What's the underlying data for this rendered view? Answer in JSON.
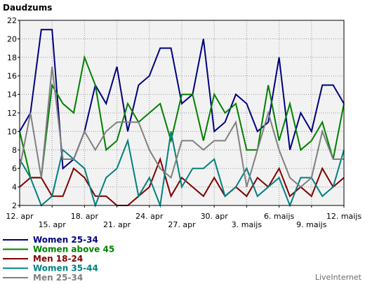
{
  "chart_data": {
    "type": "line",
    "title": "Daudzums",
    "xlabel": "",
    "ylabel": "",
    "ylim": [
      2,
      22
    ],
    "yticks": [
      2,
      4,
      6,
      8,
      10,
      12,
      14,
      16,
      18,
      20,
      22
    ],
    "grid": true,
    "legend_position": "bottom-left",
    "x_tick_labels": [
      {
        "index": 0,
        "label": "12. apr"
      },
      {
        "index": 3,
        "label": "15. apr"
      },
      {
        "index": 6,
        "label": "18. apr"
      },
      {
        "index": 9,
        "label": "21. apr"
      },
      {
        "index": 12,
        "label": "24. apr"
      },
      {
        "index": 15,
        "label": "27. apr"
      },
      {
        "index": 18,
        "label": "30. apr"
      },
      {
        "index": 21,
        "label": "3. maijs"
      },
      {
        "index": 24,
        "label": "6. maijs"
      },
      {
        "index": 27,
        "label": "9. maijs"
      },
      {
        "index": 30,
        "label": "12. maijs"
      }
    ],
    "series": [
      {
        "name": "Women 25-34",
        "color": "#000080",
        "values": [
          10,
          12,
          21,
          21,
          6,
          7,
          10,
          15,
          13,
          17,
          10,
          15,
          16,
          19,
          19,
          13,
          14,
          20,
          10,
          11,
          14,
          13,
          10,
          11,
          18,
          8,
          12,
          10,
          15,
          15,
          13
        ]
      },
      {
        "name": "Women above 45",
        "color": "#008000",
        "values": [
          10,
          5,
          5,
          15,
          13,
          12,
          18,
          15,
          8,
          9,
          13,
          11,
          12,
          13,
          9,
          14,
          14,
          9,
          14,
          12,
          13,
          8,
          8,
          15,
          9,
          13,
          8,
          9,
          11,
          7,
          13
        ]
      },
      {
        "name": "Men 18-24",
        "color": "#800000",
        "values": [
          4,
          5,
          5,
          3,
          3,
          6,
          5,
          3,
          3,
          2,
          2,
          3,
          4,
          7,
          3,
          5,
          4,
          3,
          5,
          3,
          4,
          3,
          5,
          4,
          6,
          3,
          4,
          3,
          6,
          4,
          5
        ]
      },
      {
        "name": "Women 35-44",
        "color": "#008080",
        "values": [
          7,
          5,
          2,
          3,
          8,
          7,
          6,
          2,
          5,
          6,
          9,
          3,
          5,
          2,
          10,
          4,
          6,
          6,
          7,
          3,
          4,
          6,
          3,
          4,
          5,
          2,
          5,
          5,
          3,
          4,
          8
        ]
      },
      {
        "name": "Men 25-34",
        "color": "#808080",
        "values": [
          6,
          12,
          5,
          17,
          7,
          7,
          10,
          8,
          10,
          11,
          11,
          11,
          8,
          6,
          5,
          9,
          9,
          8,
          9,
          9,
          11,
          4,
          8,
          12,
          8,
          5,
          4,
          5,
          10,
          7,
          7
        ]
      }
    ]
  },
  "credit": "LiveInternet"
}
